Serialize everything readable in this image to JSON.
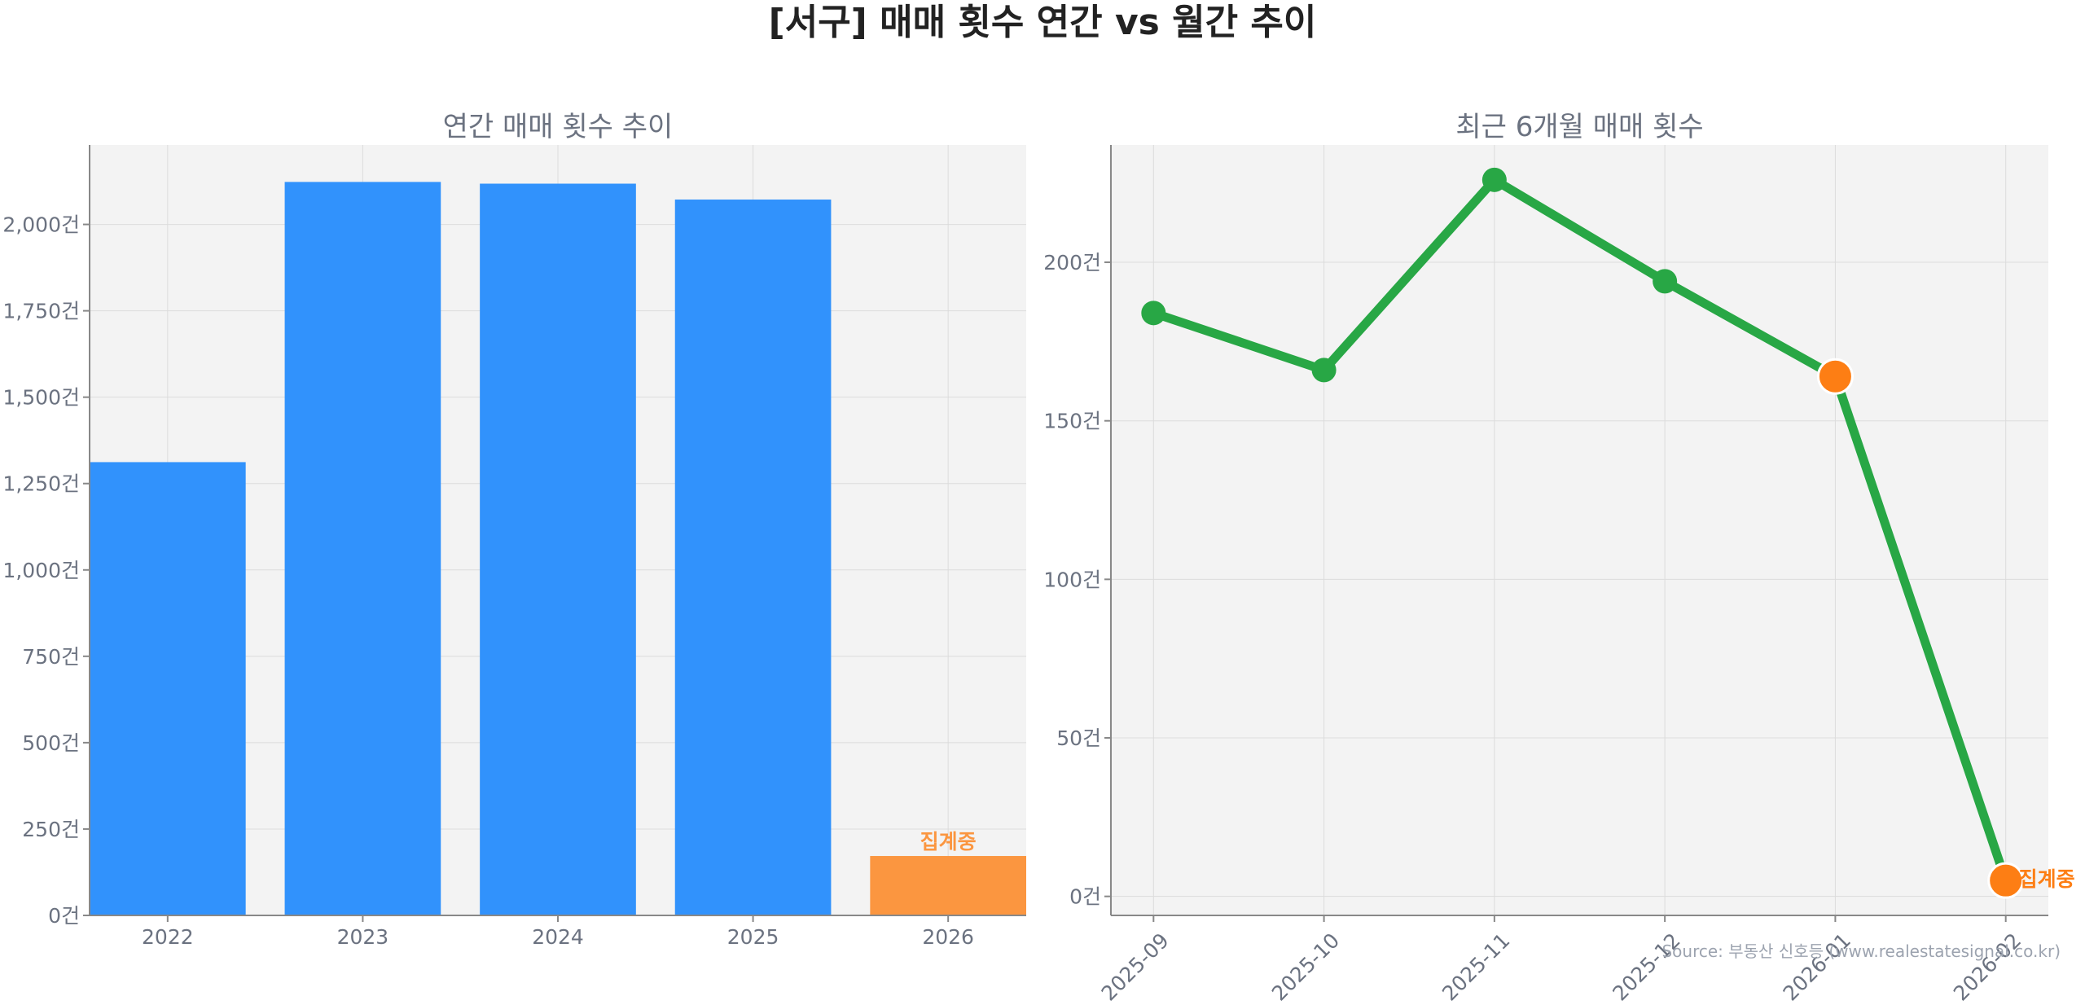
{
  "title": "[서구] 매매 횟수 연간 vs 월간 추이",
  "source": "Source: 부동산 신호등 (www.realestatesignal.co.kr)",
  "colors": {
    "bar": "#3192fc",
    "highlight": "#fb9640",
    "line": "#28a745",
    "marker_highlight": "#fd7e14",
    "plot_bg": "#f3f3f3"
  },
  "chart_data": [
    {
      "type": "bar",
      "title": "연간 매매 횟수 추이",
      "categories": [
        "2022",
        "2023",
        "2024",
        "2025",
        "2026"
      ],
      "values": [
        1312,
        2123,
        2118,
        2072,
        172
      ],
      "highlight_index": 4,
      "annotation": "집계중",
      "ylim": [
        0,
        2230
      ],
      "yticks": [
        0,
        250,
        500,
        750,
        1000,
        1250,
        1500,
        1750,
        2000
      ],
      "ytick_labels": [
        "0건",
        "250건",
        "500건",
        "750건",
        "1,000건",
        "1,250건",
        "1,500건",
        "1,750건",
        "2,000건"
      ],
      "grid": true
    },
    {
      "type": "line",
      "title": "최근 6개월 매매 횟수",
      "categories": [
        "2025-09",
        "2025-10",
        "2025-11",
        "2025-12",
        "2026-01",
        "2026-02"
      ],
      "values": [
        184,
        166,
        226,
        194,
        164,
        5
      ],
      "highlight_indices": [
        4,
        5
      ],
      "annotation": "집계중",
      "ylim": [
        -6,
        237
      ],
      "yticks": [
        0,
        50,
        100,
        150,
        200
      ],
      "ytick_labels": [
        "0건",
        "50건",
        "100건",
        "150건",
        "200건"
      ],
      "grid": true
    }
  ]
}
